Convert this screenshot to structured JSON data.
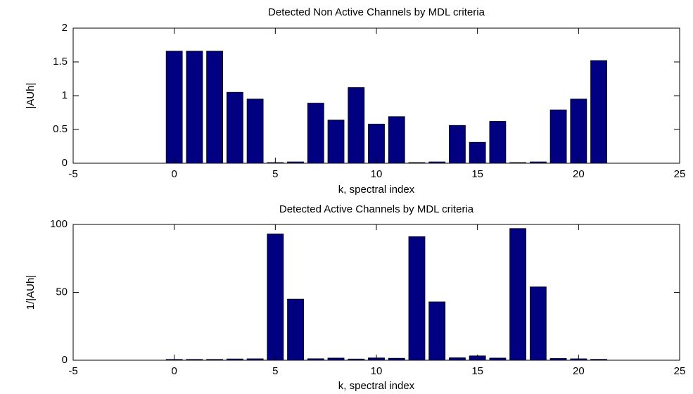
{
  "chart_data": [
    {
      "type": "bar",
      "title": "Detected Non Active Channels by MDL criteria",
      "xlabel": "k, spectral index",
      "ylabel": "|AUh|",
      "x": [
        0,
        1,
        2,
        3,
        4,
        5,
        6,
        7,
        8,
        9,
        10,
        11,
        12,
        13,
        14,
        15,
        16,
        17,
        18,
        19,
        20,
        21
      ],
      "values": [
        1.66,
        1.66,
        1.66,
        1.05,
        0.95,
        0.01,
        0.02,
        0.89,
        0.64,
        1.12,
        0.58,
        0.69,
        0.01,
        0.02,
        0.56,
        0.31,
        0.62,
        0.01,
        0.02,
        0.79,
        0.95,
        1.52
      ],
      "color": "#000080",
      "xlim": [
        -5,
        25
      ],
      "xticks": [
        -5,
        0,
        5,
        10,
        15,
        20,
        25
      ],
      "ylim": [
        0,
        2
      ],
      "yticks": [
        0,
        0.5,
        1,
        1.5,
        2
      ]
    },
    {
      "type": "bar",
      "title": "Detected  Active Channels by MDL criteria",
      "xlabel": "k, spectral index",
      "ylabel": "1/|AUh|",
      "x": [
        0,
        1,
        2,
        3,
        4,
        5,
        6,
        7,
        8,
        9,
        10,
        11,
        12,
        13,
        14,
        15,
        16,
        17,
        18,
        19,
        20,
        21
      ],
      "values": [
        0.6,
        0.6,
        0.6,
        0.95,
        1.05,
        93,
        45,
        1.1,
        1.6,
        0.9,
        1.7,
        1.45,
        91,
        43,
        1.8,
        3.2,
        1.6,
        97,
        54,
        1.3,
        1.05,
        0.66
      ],
      "color": "#000080",
      "xlim": [
        -5,
        25
      ],
      "xticks": [
        -5,
        0,
        5,
        10,
        15,
        20,
        25
      ],
      "ylim": [
        0,
        100
      ],
      "yticks": [
        0,
        50,
        100
      ]
    }
  ]
}
